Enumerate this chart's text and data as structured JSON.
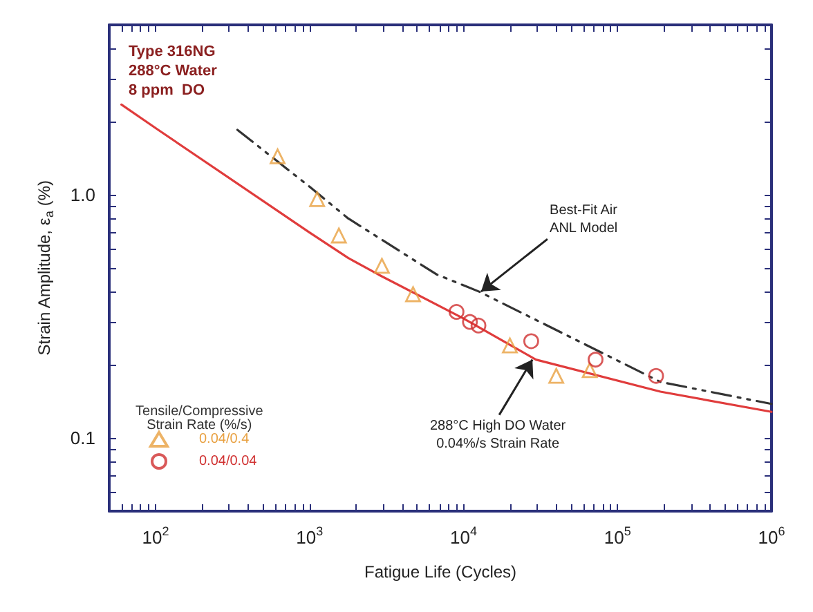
{
  "chart_data": {
    "type": "scatter",
    "xlabel": "Fatigue Life (Cycles)",
    "ylabel": "Strain Amplitude, ε$_{a}$ (%)",
    "legend_title": "Tensile/Compressive\nStrain Rate (%/s)",
    "legend": "bottom left",
    "log": "xy",
    "grid": false,
    "xlim": [
      50,
      1000000
    ],
    "ylim": [
      0.05,
      5
    ],
    "xticks": [
      {
        "value": 50,
        "label": null
      },
      {
        "value": 60,
        "label": null
      },
      {
        "value": 70,
        "label": null
      },
      {
        "value": 80,
        "label": null
      },
      {
        "value": 90,
        "label": null
      },
      {
        "value": 100,
        "label": "10$^{2}$"
      },
      {
        "value": 200,
        "label": null
      },
      {
        "value": 300,
        "label": null
      },
      {
        "value": 400,
        "label": null
      },
      {
        "value": 500,
        "label": null
      },
      {
        "value": 600,
        "label": null
      },
      {
        "value": 700,
        "label": null
      },
      {
        "value": 800,
        "label": null
      },
      {
        "value": 900,
        "label": null
      },
      {
        "value": 1000,
        "label": "10$^{3}$"
      },
      {
        "value": 2000,
        "label": null
      },
      {
        "value": 3000,
        "label": null
      },
      {
        "value": 4000,
        "label": null
      },
      {
        "value": 5000,
        "label": null
      },
      {
        "value": 6000,
        "label": null
      },
      {
        "value": 7000,
        "label": null
      },
      {
        "value": 8000,
        "label": null
      },
      {
        "value": 9000,
        "label": null
      },
      {
        "value": 10000,
        "label": "10$^{4}$"
      },
      {
        "value": 20000,
        "label": null
      },
      {
        "value": 30000,
        "label": null
      },
      {
        "value": 40000,
        "label": null
      },
      {
        "value": 50000,
        "label": null
      },
      {
        "value": 60000,
        "label": null
      },
      {
        "value": 70000,
        "label": null
      },
      {
        "value": 80000,
        "label": null
      },
      {
        "value": 90000,
        "label": null
      },
      {
        "value": 100000,
        "label": "10$^{5}$"
      },
      {
        "value": 200000,
        "label": null
      },
      {
        "value": 300000,
        "label": null
      },
      {
        "value": 400000,
        "label": null
      },
      {
        "value": 500000,
        "label": null
      },
      {
        "value": 600000,
        "label": null
      },
      {
        "value": 700000,
        "label": null
      },
      {
        "value": 800000,
        "label": null
      },
      {
        "value": 900000,
        "label": null
      },
      {
        "value": 1000000,
        "label": "10$^{6}$"
      }
    ],
    "yticks": [
      {
        "value": 0.05,
        "label": null
      },
      {
        "value": 0.06,
        "label": null
      },
      {
        "value": 0.07,
        "label": null
      },
      {
        "value": 0.08,
        "label": null
      },
      {
        "value": 0.09,
        "label": null
      },
      {
        "value": 0.1,
        "label": "0.1"
      },
      {
        "value": 0.2,
        "label": null
      },
      {
        "value": 0.3,
        "label": null
      },
      {
        "value": 0.4,
        "label": null
      },
      {
        "value": 0.5,
        "label": null
      },
      {
        "value": 0.6,
        "label": null
      },
      {
        "value": 0.7,
        "label": null
      },
      {
        "value": 0.8,
        "label": null
      },
      {
        "value": 0.9,
        "label": null
      },
      {
        "value": 1,
        "label": "1.0"
      },
      {
        "value": 2,
        "label": null
      },
      {
        "value": 3,
        "label": null
      },
      {
        "value": 4,
        "label": null
      },
      {
        "value": 5,
        "label": null
      }
    ],
    "series": [
      {
        "type": "line",
        "color": "#e03c3c",
        "line_style": "solid",
        "marker": "none",
        "x": [
          60,
          104,
          1000,
          1780,
          2800,
          10000,
          29500,
          190000,
          1000000
        ],
        "values": [
          2.35,
          1.85,
          0.7,
          0.55,
          0.47,
          0.31,
          0.21,
          0.155,
          0.128
        ]
      },
      {
        "type": "line",
        "color": "#333333",
        "line_style": "dashed",
        "marker": "none",
        "x": [
          340,
          1000,
          1780,
          6700,
          12600,
          190000,
          1000000
        ],
        "values": [
          1.85,
          1.08,
          0.8,
          0.47,
          0.4,
          0.17,
          0.138
        ]
      },
      {
        "name": "0.04/0.4",
        "color": "#e8a040",
        "marker": "triangle",
        "x": [
          620,
          1120,
          1550,
          2950,
          4700,
          20000,
          40000,
          66000
        ],
        "values": [
          1.44,
          0.96,
          0.68,
          0.51,
          0.39,
          0.24,
          0.18,
          0.19
        ]
      },
      {
        "name": "0.04/0.04",
        "color": "#d03030",
        "marker": "circle",
        "x": [
          9000,
          11000,
          12500,
          27500,
          72000,
          178000
        ],
        "values": [
          0.33,
          0.3,
          0.29,
          0.25,
          0.21,
          0.18
        ]
      }
    ],
    "annotations": [
      "Type 316NG",
      "288°C Water",
      "8 ppm  DO",
      {
        "text": "Best-Fit Air\nANL Model",
        "x": 13000,
        "y": 0.4
      },
      {
        "text": "288°C High DO Water\n0.04%/s Strain Rate",
        "x": 28000,
        "y": 0.21
      }
    ]
  }
}
